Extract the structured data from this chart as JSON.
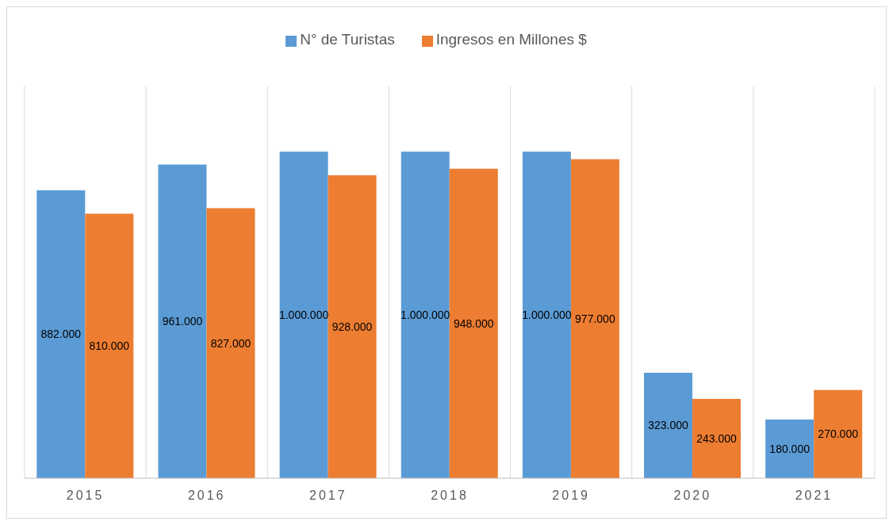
{
  "chart_data": {
    "type": "bar",
    "categories": [
      "2015",
      "2016",
      "2017",
      "2018",
      "2019",
      "2020",
      "2021"
    ],
    "series": [
      {
        "name": "N° de Turistas",
        "color": "#5b9bd5",
        "values": [
          882000,
          961000,
          1000000,
          1000000,
          1000000,
          323000,
          180000
        ],
        "value_labels": [
          "882.000",
          "961.000",
          "1.000.000",
          "1.000.000",
          "1.000.000",
          "323.000",
          "180.000"
        ]
      },
      {
        "name": "Ingresos en Millones $",
        "color": "#ed7d31",
        "values": [
          810000,
          827000,
          928000,
          948000,
          977000,
          243000,
          270000
        ],
        "value_labels": [
          "810.000",
          "827.000",
          "928.000",
          "948.000",
          "977.000",
          "243.000",
          "270.000"
        ]
      }
    ],
    "grid": "x",
    "legend": "top"
  }
}
